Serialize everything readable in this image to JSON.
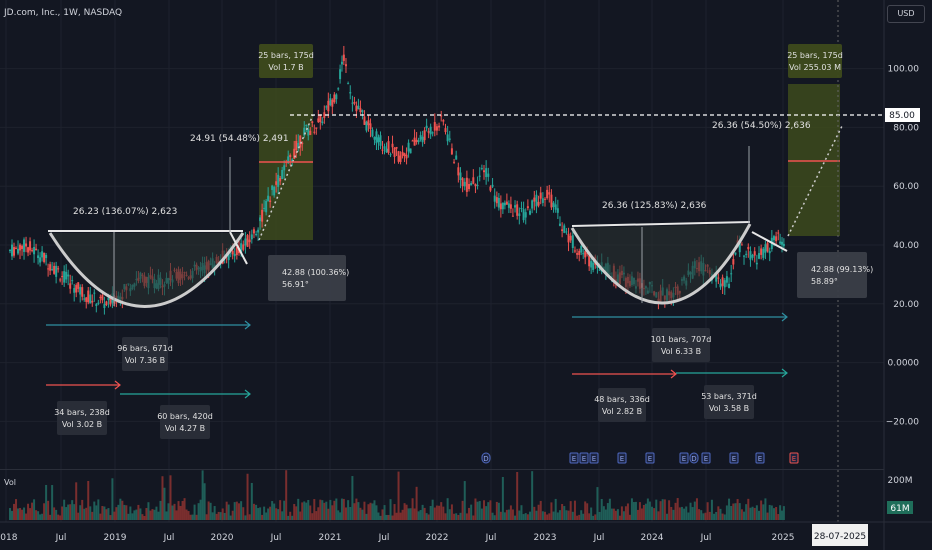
{
  "header": {
    "title": "JD.com, Inc., 1W, NASDAQ"
  },
  "currency": "USD",
  "volume_label": "Vol",
  "colors": {
    "background": "#131722",
    "up": "#26a69a",
    "down": "#ef5350",
    "grid": "#1e222d",
    "text": "#d1d4dc"
  },
  "price_badge": "85.00",
  "volume_badges": {
    "max": "200M",
    "current": "61M"
  },
  "date_badge": "28-07-2025",
  "events": [
    "D",
    "E",
    "E",
    "E",
    "E",
    "E",
    "E",
    "D",
    "E",
    "E",
    "E",
    "E"
  ],
  "chart_data": {
    "type": "candlestick",
    "title": "JD.com, Inc., 1W, NASDAQ",
    "x_ticks": [
      "2018",
      "Jul",
      "2019",
      "Jul",
      "2020",
      "Jul",
      "2021",
      "Jul",
      "2022",
      "Jul",
      "2023",
      "Jul",
      "2024",
      "Jul",
      "2025"
    ],
    "y_ticks": [
      "100.00",
      "80.00",
      "60.00",
      "40.00",
      "20.00",
      "0.0000",
      "−20.00"
    ],
    "ylim": [
      -27,
      118
    ],
    "target_price": 85.0,
    "series": [
      {
        "values": [
          [
            2018.0,
            38
          ],
          [
            2018.15,
            40
          ],
          [
            2018.3,
            36
          ],
          [
            2018.45,
            31
          ],
          [
            2018.6,
            26
          ],
          [
            2018.75,
            22
          ],
          [
            2018.92,
            20
          ],
          [
            2019.05,
            24
          ],
          [
            2019.2,
            29
          ],
          [
            2019.35,
            27
          ],
          [
            2019.5,
            29
          ],
          [
            2019.65,
            30
          ],
          [
            2019.8,
            32
          ],
          [
            2019.95,
            35
          ],
          [
            2020.1,
            38
          ],
          [
            2020.2,
            40
          ],
          [
            2020.3,
            45
          ],
          [
            2020.45,
            58
          ],
          [
            2020.6,
            68
          ],
          [
            2020.75,
            78
          ],
          [
            2020.9,
            82
          ],
          [
            2021.05,
            92
          ],
          [
            2021.12,
            104
          ],
          [
            2021.2,
            90
          ],
          [
            2021.35,
            80
          ],
          [
            2021.5,
            74
          ],
          [
            2021.65,
            70
          ],
          [
            2021.8,
            75
          ],
          [
            2021.95,
            80
          ],
          [
            2022.05,
            82
          ],
          [
            2022.15,
            70
          ],
          [
            2022.25,
            60
          ],
          [
            2022.35,
            62
          ],
          [
            2022.45,
            65
          ],
          [
            2022.55,
            55
          ],
          [
            2022.7,
            52
          ],
          [
            2022.82,
            50
          ],
          [
            2022.92,
            55
          ],
          [
            2023.02,
            58
          ],
          [
            2023.1,
            52
          ],
          [
            2023.2,
            44
          ],
          [
            2023.32,
            38
          ],
          [
            2023.45,
            34
          ],
          [
            2023.55,
            33
          ],
          [
            2023.7,
            29
          ],
          [
            2023.85,
            27
          ],
          [
            2023.98,
            25
          ],
          [
            2024.08,
            23
          ],
          [
            2024.2,
            24
          ],
          [
            2024.32,
            28
          ],
          [
            2024.42,
            33
          ],
          [
            2024.52,
            31
          ],
          [
            2024.62,
            28
          ],
          [
            2024.72,
            27
          ],
          [
            2024.8,
            40
          ],
          [
            2024.88,
            38
          ],
          [
            2024.98,
            35
          ],
          [
            2025.08,
            39
          ],
          [
            2025.18,
            42
          ],
          [
            2025.25,
            38
          ]
        ]
      }
    ],
    "annotations": [
      {
        "text": "26.23 (136.07%) 2,623"
      },
      {
        "text": "24.91 (54.48%) 2,491"
      },
      {
        "text": "26.36 (125.83%) 2,636"
      },
      {
        "text": "26.36 (54.50%) 2,636"
      },
      {
        "box": [
          "25 bars, 175d",
          "Vol 1.7 B"
        ]
      },
      {
        "box": [
          "25 bars, 175d",
          "Vol 255.03 M"
        ]
      },
      {
        "box": [
          "42.88 (100.36%)",
          "56.91°"
        ]
      },
      {
        "box": [
          "42.88 (99.13%)",
          "58.89°"
        ]
      },
      {
        "box": [
          "96 bars, 671d",
          "Vol 7.36 B"
        ]
      },
      {
        "box": [
          "34 bars, 238d",
          "Vol 3.02 B"
        ]
      },
      {
        "box": [
          "60 bars, 420d",
          "Vol 4.27 B"
        ]
      },
      {
        "box": [
          "101 bars, 707d",
          "Vol 6.33 B"
        ]
      },
      {
        "box": [
          "48 bars, 336d",
          "Vol 2.82 B"
        ]
      },
      {
        "box": [
          "53 bars, 371d",
          "Vol 3.58 B"
        ]
      }
    ]
  }
}
